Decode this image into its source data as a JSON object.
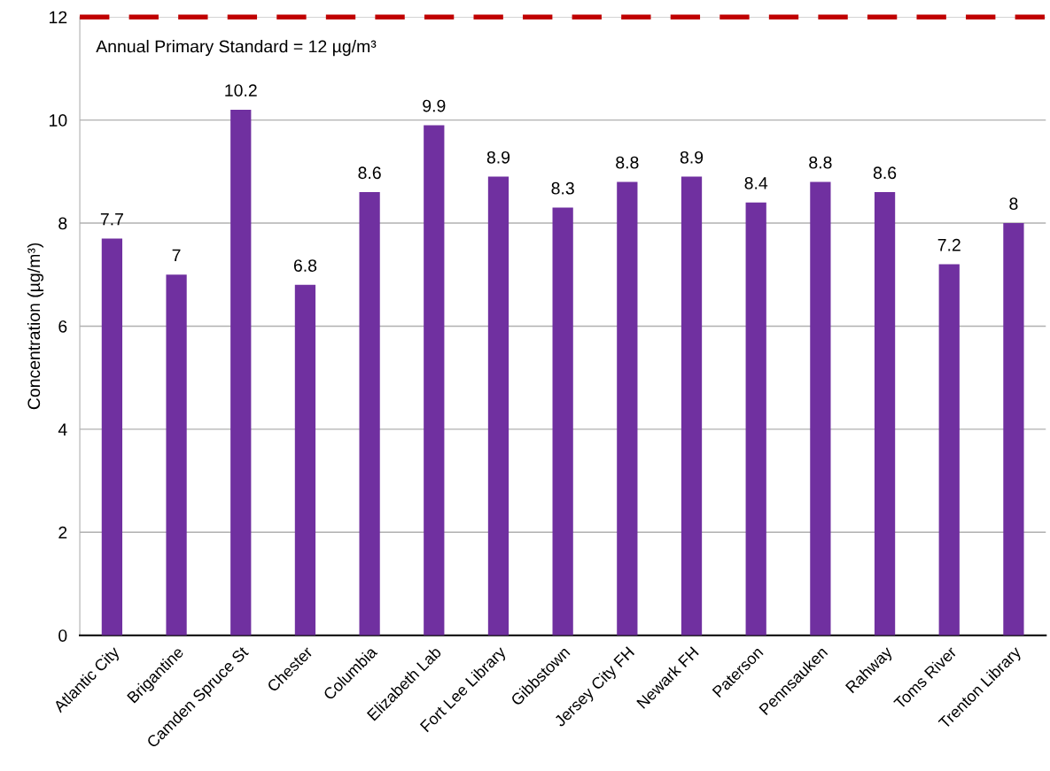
{
  "chart_data": {
    "type": "bar",
    "ylabel": "Concentration (µg/m³)",
    "categories": [
      "Atlantic City",
      "Brigantine",
      "Camden Spruce St",
      "Chester",
      "Columbia",
      "Elizabeth Lab",
      "Fort Lee Library",
      "Gibbstown",
      "Jersey City FH",
      "Newark FH",
      "Paterson",
      "Pennsauken",
      "Rahway",
      "Toms River",
      "Trenton Library"
    ],
    "values": [
      7.7,
      7,
      10.2,
      6.8,
      8.6,
      9.9,
      8.9,
      8.3,
      8.8,
      8.9,
      8.4,
      8.8,
      8.6,
      7.2,
      8
    ],
    "color": "#7030a0",
    "ylim": [
      0,
      12
    ],
    "yticks": [
      0,
      2,
      4,
      6,
      8,
      10,
      12
    ],
    "grid": "y",
    "data_labels": true,
    "ref_lines": [
      {
        "axis": "y",
        "value": 12,
        "label": "Annual Primary Standard = 12 µg/m³",
        "color": "#c00000",
        "line_style": "dashed"
      }
    ]
  }
}
